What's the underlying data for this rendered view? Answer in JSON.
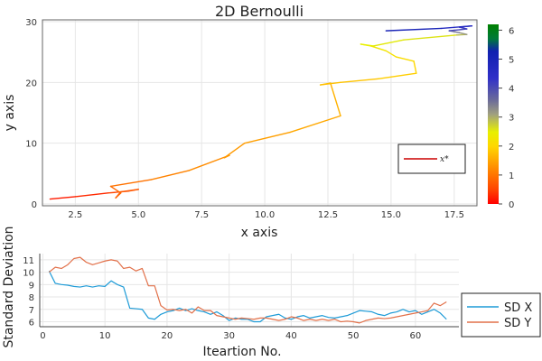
{
  "chart_data": [
    {
      "type": "line",
      "title": "2D Bernoulli",
      "xlabel": "x axis",
      "ylabel": "y axis",
      "xlim": [
        1.2,
        18.4
      ],
      "ylim": [
        -0.3,
        30.3
      ],
      "xticks": [
        2.5,
        5.0,
        7.5,
        10.0,
        12.5,
        15.0,
        17.5
      ],
      "xtick_labels": [
        "2.5",
        "5.0",
        "7.5",
        "10.0",
        "12.5",
        "15.0",
        "17.5"
      ],
      "yticks": [
        0,
        10,
        20,
        30
      ],
      "ytick_labels": [
        "0",
        "10",
        "20",
        "30"
      ],
      "grid": true,
      "legend": {
        "position": "right",
        "entries": [
          {
            "label": "x*",
            "color": "#cc0000"
          }
        ]
      },
      "colorbar": {
        "min": 0,
        "max": 6.2,
        "ticks": [
          0,
          1,
          2,
          3,
          4,
          5,
          6
        ],
        "tick_labels": [
          "0",
          "1",
          "2",
          "3",
          "4",
          "5",
          "6"
        ]
      },
      "series": [
        {
          "points": [
            [
              1.5,
              0.8,
              0.2
            ],
            [
              2.5,
              1.2,
              0.3
            ],
            [
              3.8,
              1.8,
              0.5
            ],
            [
              4.6,
              2.1,
              0.6
            ],
            [
              5.0,
              2.4,
              0.7
            ],
            [
              4.3,
              2.0,
              0.75
            ],
            [
              4.1,
              1.0,
              0.8
            ],
            [
              4.3,
              1.8,
              0.85
            ],
            [
              3.9,
              2.9,
              0.95
            ],
            [
              5.5,
              4.0,
              1.1
            ],
            [
              7.0,
              5.5,
              1.2
            ],
            [
              8.6,
              8.0,
              1.3
            ],
            [
              8.4,
              7.6,
              1.35
            ],
            [
              9.2,
              10.0,
              1.4
            ],
            [
              11.0,
              11.8,
              1.5
            ],
            [
              13.0,
              14.5,
              1.6
            ],
            [
              12.6,
              19.9,
              1.7
            ],
            [
              12.2,
              19.6,
              1.75
            ],
            [
              13.0,
              20.0,
              1.8
            ],
            [
              14.5,
              20.6,
              1.9
            ],
            [
              16.0,
              21.5,
              2.0
            ],
            [
              15.9,
              23.5,
              2.1
            ],
            [
              15.2,
              24.2,
              2.2
            ],
            [
              14.8,
              25.2,
              2.3
            ],
            [
              14.2,
              26.0,
              2.4
            ],
            [
              13.8,
              26.3,
              2.5
            ],
            [
              14.3,
              26.0,
              2.55
            ],
            [
              15.5,
              27.0,
              2.6
            ],
            [
              17.6,
              27.8,
              2.9
            ],
            [
              18.0,
              27.9,
              3.2
            ],
            [
              17.7,
              28.2,
              3.5
            ],
            [
              17.3,
              28.5,
              4.0
            ],
            [
              18.0,
              28.8,
              4.2
            ],
            [
              17.7,
              29.1,
              4.4
            ],
            [
              18.2,
              29.3,
              4.6
            ],
            [
              17.0,
              28.9,
              5.0
            ],
            [
              14.8,
              28.5,
              5.5
            ]
          ]
        }
      ]
    },
    {
      "type": "line",
      "xlabel": "Iteartion No.",
      "ylabel": "Standard Deviation",
      "xlim": [
        -0.5,
        67
      ],
      "ylim": [
        5.6,
        11.5
      ],
      "xticks": [
        0,
        10,
        20,
        30,
        40,
        50,
        60
      ],
      "xtick_labels": [
        "0",
        "10",
        "20",
        "30",
        "40",
        "50",
        "60"
      ],
      "yticks": [
        6,
        7,
        8,
        9,
        10,
        11
      ],
      "ytick_labels": [
        "6",
        "7",
        "8",
        "9",
        "10",
        "11"
      ],
      "grid": true,
      "legend": {
        "position": "outside-right"
      },
      "x": [
        1,
        2,
        3,
        4,
        5,
        6,
        7,
        8,
        9,
        10,
        11,
        12,
        13,
        14,
        15,
        16,
        17,
        18,
        19,
        20,
        21,
        22,
        23,
        24,
        25,
        26,
        27,
        28,
        29,
        30,
        31,
        32,
        33,
        34,
        35,
        36,
        37,
        38,
        39,
        40,
        41,
        42,
        43,
        44,
        45,
        46,
        47,
        48,
        49,
        50,
        51,
        52,
        53,
        54,
        55,
        56,
        57,
        58,
        59,
        60,
        61,
        62,
        63,
        64,
        65
      ],
      "series": [
        {
          "name": "SD X",
          "color": "#1e9bd7",
          "values": [
            10.1,
            9.1,
            9.0,
            8.95,
            8.85,
            8.8,
            8.9,
            8.8,
            8.9,
            8.85,
            9.3,
            9.0,
            8.8,
            7.1,
            7.05,
            7.0,
            6.3,
            6.2,
            6.6,
            6.8,
            6.9,
            7.1,
            6.9,
            7.05,
            6.9,
            6.8,
            6.6,
            6.8,
            6.5,
            6.1,
            6.3,
            6.2,
            6.2,
            6.0,
            6.0,
            6.4,
            6.5,
            6.6,
            6.3,
            6.2,
            6.4,
            6.5,
            6.3,
            6.4,
            6.5,
            6.35,
            6.3,
            6.4,
            6.5,
            6.7,
            6.9,
            6.85,
            6.8,
            6.6,
            6.5,
            6.7,
            6.8,
            7.0,
            6.8,
            6.9,
            6.6,
            6.8,
            7.0,
            6.7,
            6.2
          ]
        },
        {
          "name": "SD Y",
          "color": "#e2714a",
          "values": [
            10.0,
            10.4,
            10.3,
            10.6,
            11.1,
            11.2,
            10.8,
            10.6,
            10.75,
            10.9,
            11.0,
            10.9,
            10.3,
            10.4,
            10.1,
            10.3,
            8.9,
            8.9,
            7.3,
            6.95,
            7.0,
            6.9,
            7.0,
            6.7,
            7.2,
            6.9,
            6.9,
            6.5,
            6.4,
            6.3,
            6.2,
            6.3,
            6.25,
            6.2,
            6.3,
            6.3,
            6.2,
            6.1,
            6.2,
            6.4,
            6.3,
            6.1,
            6.2,
            6.1,
            6.2,
            6.1,
            6.2,
            6.0,
            6.05,
            6.0,
            5.9,
            6.1,
            6.2,
            6.3,
            6.25,
            6.3,
            6.4,
            6.5,
            6.6,
            6.7,
            6.8,
            6.9,
            7.5,
            7.3,
            7.6
          ]
        }
      ]
    }
  ]
}
